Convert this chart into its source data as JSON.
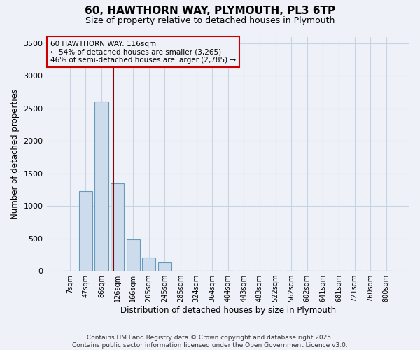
{
  "title_line1": "60, HAWTHORN WAY, PLYMOUTH, PL3 6TP",
  "title_line2": "Size of property relative to detached houses in Plymouth",
  "xlabel": "Distribution of detached houses by size in Plymouth",
  "ylabel": "Number of detached properties",
  "categories": [
    "7sqm",
    "47sqm",
    "86sqm",
    "126sqm",
    "166sqm",
    "205sqm",
    "245sqm",
    "285sqm",
    "324sqm",
    "364sqm",
    "404sqm",
    "443sqm",
    "483sqm",
    "522sqm",
    "562sqm",
    "602sqm",
    "641sqm",
    "681sqm",
    "721sqm",
    "760sqm",
    "800sqm"
  ],
  "values": [
    0,
    1230,
    2600,
    1350,
    480,
    210,
    130,
    0,
    0,
    0,
    0,
    0,
    0,
    0,
    0,
    0,
    0,
    0,
    0,
    0,
    0
  ],
  "bar_color": "#ccdcec",
  "bar_edge_color": "#6699bb",
  "grid_color": "#c8d4e4",
  "annotation_text": "60 HAWTHORN WAY: 116sqm\n← 54% of detached houses are smaller (3,265)\n46% of semi-detached houses are larger (2,785) →",
  "vline_color": "#8b0000",
  "annotation_box_color": "#cc0000",
  "ylim": [
    0,
    3600
  ],
  "yticks": [
    0,
    500,
    1000,
    1500,
    2000,
    2500,
    3000,
    3500
  ],
  "footer_line1": "Contains HM Land Registry data © Crown copyright and database right 2025.",
  "footer_line2": "Contains public sector information licensed under the Open Government Licence v3.0.",
  "bg_color": "#eef2f8"
}
